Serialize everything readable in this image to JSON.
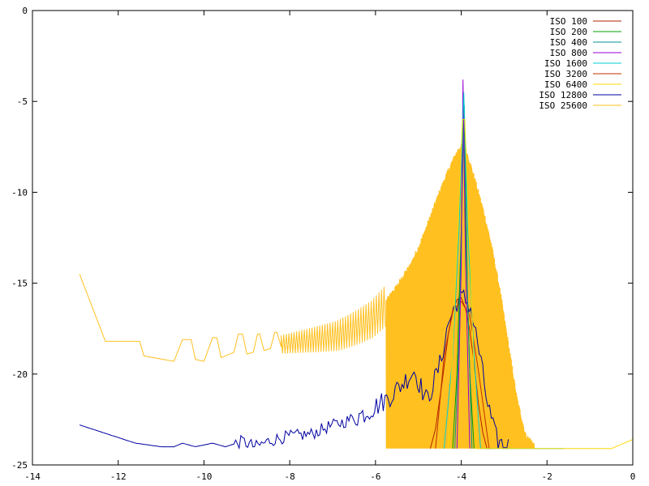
{
  "chart_data": {
    "type": "line",
    "title": "",
    "xlabel": "",
    "ylabel": "",
    "xlim": [
      -14,
      0
    ],
    "ylim": [
      -25,
      0
    ],
    "xticks": [
      -14,
      -12,
      -10,
      -8,
      -6,
      -4,
      -2,
      0
    ],
    "yticks": [
      0,
      -5,
      -10,
      -15,
      -20,
      -25
    ],
    "xtick_labels": [
      "-14",
      "-12",
      "-10",
      "-8",
      "-6",
      "-4",
      "-2",
      "0"
    ],
    "ytick_labels": [
      "0",
      "-5",
      "-10",
      "-15",
      "-20",
      "-25"
    ],
    "grid": false,
    "legend_position": "top-right",
    "series": [
      {
        "name": "ISO 100",
        "color": "#b22200",
        "peak": -15.8,
        "x": [
          -4.72,
          -4.6,
          -4.45,
          -4.3,
          -4.2,
          -4.1,
          -4.0,
          -3.9,
          -3.8,
          -3.7,
          -3.6,
          -3.5,
          -3.4,
          -3.3
        ],
        "y": [
          -24.1,
          -23.0,
          -20.5,
          -17.8,
          -16.6,
          -15.9,
          -15.8,
          -16.4,
          -17.6,
          -19.4,
          -21.6,
          -23.2,
          -24.1,
          -24.1
        ]
      },
      {
        "name": "ISO 200",
        "color": "#00a000",
        "peak": -4.6,
        "x": [
          -4.2,
          -4.1,
          -4.0,
          -3.95,
          -3.9,
          -3.8,
          -3.7
        ],
        "y": [
          -24.1,
          -20.0,
          -12.0,
          -4.6,
          -12.0,
          -20.0,
          -24.1
        ]
      },
      {
        "name": "ISO 400",
        "color": "#009090",
        "peak": -5.2,
        "x": [
          -4.15,
          -4.05,
          -3.97,
          -3.93,
          -3.85,
          -3.75
        ],
        "y": [
          -24.1,
          -18.0,
          -9.0,
          -5.2,
          -16.0,
          -24.1
        ]
      },
      {
        "name": "ISO 800",
        "color": "#9400d3",
        "peak": -3.8,
        "x": [
          -4.1,
          -4.0,
          -3.96,
          -3.9,
          -3.8
        ],
        "y": [
          -24.1,
          -14.0,
          -3.8,
          -14.0,
          -24.1
        ]
      },
      {
        "name": "ISO 1600",
        "color": "#00ced1",
        "peak": -4.5,
        "x": [
          -4.4,
          -4.2,
          -4.05,
          -3.94,
          -3.85,
          -3.7,
          -3.55,
          -1.6
        ],
        "y": [
          -24.1,
          -19.0,
          -12.0,
          -4.5,
          -12.0,
          -19.0,
          -24.1,
          -24.1
        ]
      },
      {
        "name": "ISO 3200",
        "color": "#c03000",
        "peak": -16.0,
        "x": [
          -4.6,
          -4.4,
          -4.2,
          -4.0,
          -3.8,
          -3.6,
          -3.35
        ],
        "y": [
          -24.1,
          -19.0,
          -16.5,
          -16.0,
          -16.8,
          -19.8,
          -24.1
        ]
      },
      {
        "name": "ISO 6400",
        "color": "#ffd700",
        "peak": -6.0,
        "x": [
          -4.3,
          -4.1,
          -3.97,
          -3.92,
          -3.8,
          -3.65,
          -0.5,
          0.0
        ],
        "y": [
          -24.1,
          -13.0,
          -6.0,
          -6.0,
          -13.0,
          -24.1,
          -24.1,
          -23.6
        ]
      },
      {
        "name": "ISO 12800",
        "color": "#0000a0",
        "peak": -15.8,
        "x": [
          -12.9,
          -11.6,
          -11.0,
          -10.7,
          -10.5,
          -10.2,
          -9.8,
          -9.5,
          -9.1,
          -8.8,
          -8.5,
          -8.2,
          -7.9,
          -7.5,
          -7.1,
          -6.7,
          -6.3,
          -6.0,
          -5.7,
          -5.4,
          -5.1,
          -4.8,
          -4.5,
          -4.3,
          -4.1,
          -3.95,
          -3.8,
          -3.6,
          -3.4,
          -3.2,
          -3.0,
          -2.9
        ],
        "y": [
          -22.8,
          -23.8,
          -24.0,
          -24.0,
          -23.8,
          -24.0,
          -23.8,
          -24.0,
          -23.7,
          -24.0,
          -23.7,
          -23.5,
          -23.4,
          -23.3,
          -22.9,
          -22.6,
          -22.2,
          -21.8,
          -21.3,
          -20.6,
          -19.8,
          -21.5,
          -19.5,
          -17.2,
          -16.0,
          -15.8,
          -16.2,
          -18.5,
          -21.5,
          -23.5,
          -24.0,
          -24.0
        ]
      },
      {
        "name": "ISO 25600",
        "color": "#ffc020",
        "peak": -7.6,
        "x": [
          -12.9,
          -12.3,
          -11.5,
          -11.0,
          -10.2,
          -9.3,
          -8.6,
          -8.0,
          -7.4,
          -6.9,
          -6.5,
          -6.1,
          -5.8,
          -5.5,
          -5.2,
          -5.0,
          -4.8,
          -4.6,
          -4.4,
          -4.2,
          -4.05,
          -3.95,
          -3.85,
          -3.7,
          -3.5,
          -3.3,
          -3.1,
          -2.9,
          -2.7,
          -2.5,
          -2.3
        ],
        "y": [
          -14.5,
          -18.2,
          -18.2,
          -19.0,
          -19.2,
          -18.8,
          -18.5,
          -18.3,
          -18.1,
          -17.9,
          -17.5,
          -17.0,
          -16.3,
          -15.3,
          -14.2,
          -13.2,
          -12.0,
          -10.7,
          -9.5,
          -8.4,
          -7.7,
          -7.6,
          -8.1,
          -9.3,
          -11.0,
          -13.0,
          -15.5,
          -18.5,
          -21.5,
          -23.5,
          -24.0
        ]
      }
    ]
  }
}
